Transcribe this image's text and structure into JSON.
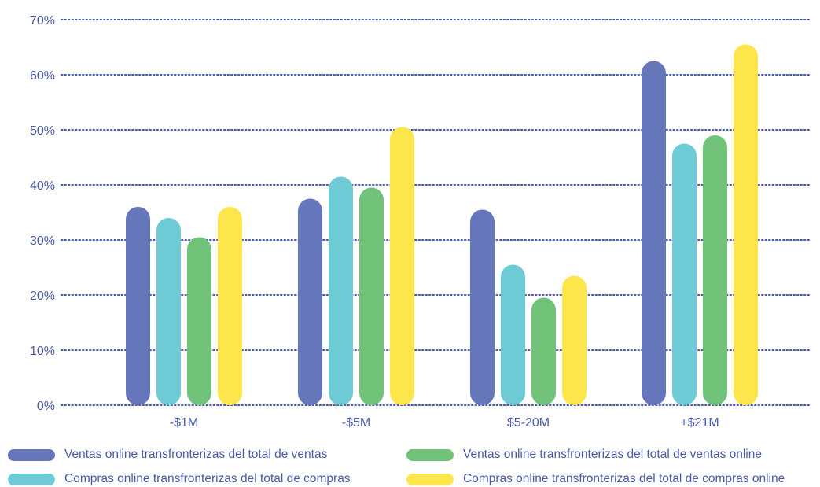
{
  "chart_data": {
    "type": "bar",
    "categories": [
      "-$1M",
      "-$5M",
      "$5-20M",
      "+$21M"
    ],
    "series": [
      {
        "name": "Ventas online transfronterizas del total de ventas",
        "color": "#6576bb",
        "values": [
          36,
          37.5,
          35.5,
          62.5
        ]
      },
      {
        "name": "Compras online transfronterizas del total de compras",
        "color": "#6ecbd6",
        "values": [
          34,
          41.5,
          25.5,
          47.5
        ]
      },
      {
        "name": "Ventas online transfronterizas del total de ventas online",
        "color": "#72c37a",
        "values": [
          30.5,
          39.5,
          19.5,
          49
        ]
      },
      {
        "name": "Compras online transfronterizas del total de compras online",
        "color": "#fde64b",
        "values": [
          36,
          50.5,
          23.5,
          65.5
        ]
      }
    ],
    "y_ticks": [
      "0%",
      "10%",
      "20%",
      "30%",
      "40%",
      "50%",
      "60%",
      "70%"
    ],
    "ylim": [
      0,
      70
    ],
    "grid": true,
    "grid_color": "#4a5aa8",
    "text_color": "#4a5aa8",
    "legend_placement": "bottom",
    "title": "",
    "xlabel": "",
    "ylabel": ""
  }
}
